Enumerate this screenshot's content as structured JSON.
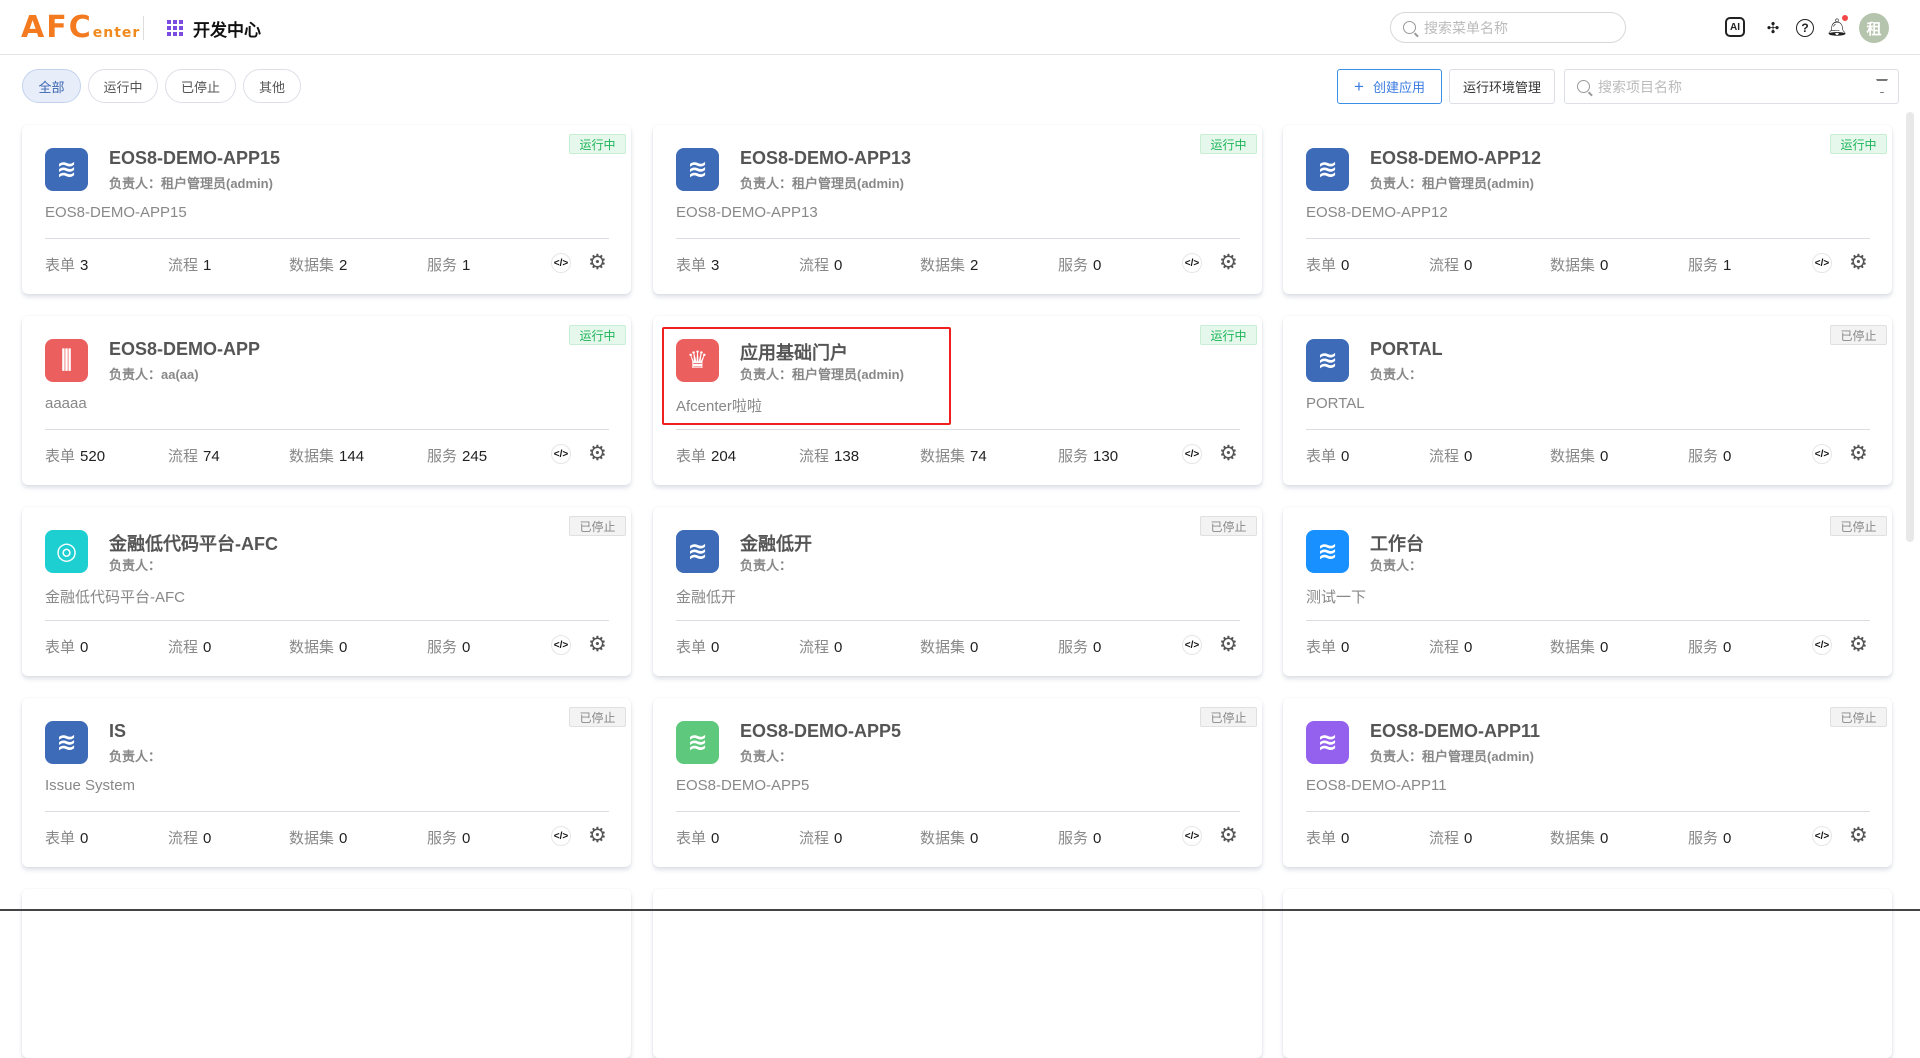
{
  "header": {
    "logo_main": "AFC",
    "logo_sub": "enter",
    "title": "开发中心",
    "search_placeholder": "搜索菜单名称",
    "avatar_text": "租",
    "icons": [
      "ai-icon",
      "plugin-icon",
      "help-icon",
      "bell-icon"
    ]
  },
  "filters": [
    {
      "label": "全部",
      "active": true
    },
    {
      "label": "运行中"
    },
    {
      "label": "已停止"
    },
    {
      "label": "其他"
    }
  ],
  "toolbar": {
    "create_label": "创建应用",
    "create_icon": "+",
    "env_label": "运行环境管理",
    "search_placeholder": "搜索项目名称"
  },
  "stat_labels": {
    "forms": "表单",
    "flows": "流程",
    "datasets": "数据集",
    "services": "服务"
  },
  "colors": {
    "running": "#1db559",
    "stopped": "#888888",
    "accent": "#3a7be0"
  },
  "apps": [
    {
      "name": "EOS8-DEMO-APP15",
      "owner": "负责人：租户管理员(admin)",
      "desc": "EOS8-DEMO-APP15",
      "status": "运行中",
      "running": true,
      "forms": "3",
      "flows": "1",
      "datasets": "2",
      "services": "1",
      "icon": "layers-icon",
      "color": "#3d6bb8"
    },
    {
      "name": "EOS8-DEMO-APP13",
      "owner": "负责人：租户管理员(admin)",
      "desc": "EOS8-DEMO-APP13",
      "status": "运行中",
      "running": true,
      "forms": "3",
      "flows": "0",
      "datasets": "2",
      "services": "0",
      "icon": "layers-icon",
      "color": "#3d6bb8"
    },
    {
      "name": "EOS8-DEMO-APP12",
      "owner": "负责人：租户管理员(admin)",
      "desc": "EOS8-DEMO-APP12",
      "status": "运行中",
      "running": true,
      "forms": "0",
      "flows": "0",
      "datasets": "0",
      "services": "1",
      "icon": "layers-icon",
      "color": "#3d6bb8"
    },
    {
      "name": "EOS8-DEMO-APP",
      "owner": "负责人：aa(aa)",
      "desc": "aaaaa",
      "status": "运行中",
      "running": true,
      "forms": "520",
      "flows": "74",
      "datasets": "144",
      "services": "245",
      "icon": "gate-icon",
      "color": "#ec5f5f"
    },
    {
      "name": "应用基础门户",
      "owner": "负责人：租户管理员(admin)",
      "desc": "Afcenter啦啦",
      "status": "运行中",
      "running": true,
      "forms": "204",
      "flows": "138",
      "datasets": "74",
      "services": "130",
      "icon": "crown-icon",
      "color": "#ec5f5f"
    },
    {
      "name": "PORTAL",
      "owner": "负责人：",
      "desc": "PORTAL",
      "status": "已停止",
      "running": false,
      "forms": "0",
      "flows": "0",
      "datasets": "0",
      "services": "0",
      "icon": "layers-icon",
      "color": "#3d6bb8"
    },
    {
      "name": "金融低代码平台-AFC",
      "owner": "负责人：",
      "desc": "金融低代码平台-AFC",
      "status": "已停止",
      "running": false,
      "forms": "0",
      "flows": "0",
      "datasets": "0",
      "services": "0",
      "icon": "chat-icon",
      "color": "#1ecfd2"
    },
    {
      "name": "金融低开",
      "owner": "负责人：",
      "desc": "金融低开",
      "status": "已停止",
      "running": false,
      "forms": "0",
      "flows": "0",
      "datasets": "0",
      "services": "0",
      "icon": "layers-icon",
      "color": "#3d6bb8"
    },
    {
      "name": "工作台",
      "owner": "负责人：",
      "desc": "测试一下",
      "status": "已停止",
      "running": false,
      "forms": "0",
      "flows": "0",
      "datasets": "0",
      "services": "0",
      "icon": "layers-icon",
      "color": "#1890ff"
    },
    {
      "name": "IS",
      "owner": "负责人：",
      "desc": "Issue System",
      "status": "已停止",
      "running": false,
      "forms": "0",
      "flows": "0",
      "datasets": "0",
      "services": "0",
      "icon": "layers-icon",
      "color": "#3d6bb8"
    },
    {
      "name": "EOS8-DEMO-APP5",
      "owner": "负责人：",
      "desc": "EOS8-DEMO-APP5",
      "status": "已停止",
      "running": false,
      "forms": "0",
      "flows": "0",
      "datasets": "0",
      "services": "0",
      "icon": "layers-icon",
      "color": "#5ec97c"
    },
    {
      "name": "EOS8-DEMO-APP11",
      "owner": "负责人：租户管理员(admin)",
      "desc": "EOS8-DEMO-APP11",
      "status": "已停止",
      "running": false,
      "forms": "0",
      "flows": "0",
      "datasets": "0",
      "services": "0",
      "icon": "layers-icon",
      "color": "#9461ee"
    }
  ]
}
